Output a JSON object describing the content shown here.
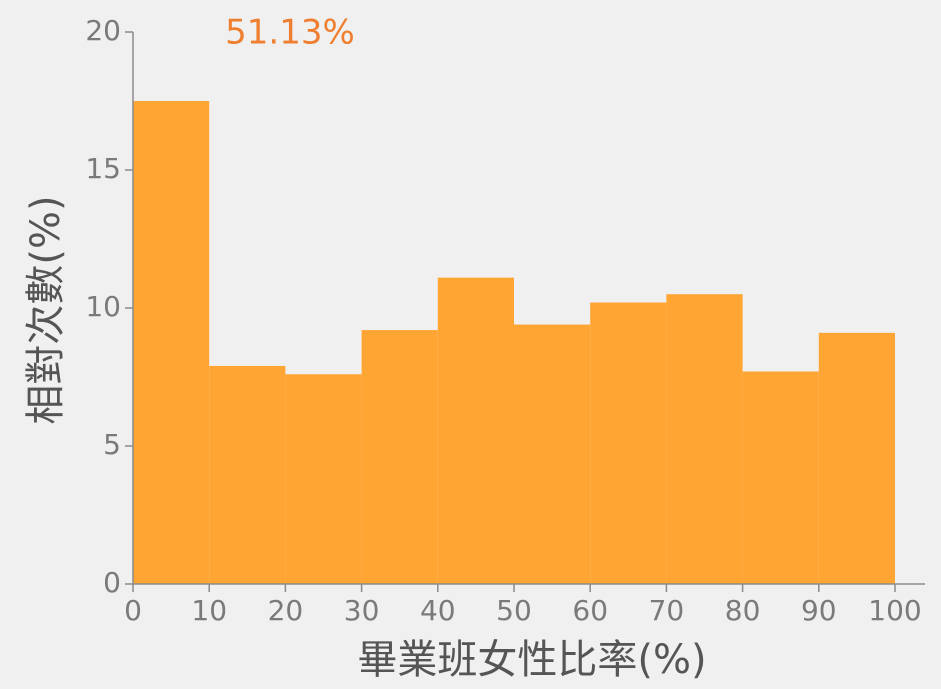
{
  "chart_data": {
    "type": "histogram",
    "annotation": "51.13%",
    "xlabel": "畢業班女性比率(%)",
    "ylabel": "相對次數(%)",
    "bins": [
      0,
      10,
      20,
      30,
      40,
      50,
      60,
      70,
      80,
      90,
      100
    ],
    "values": [
      17.5,
      7.9,
      7.6,
      9.2,
      11.1,
      9.4,
      10.2,
      10.5,
      7.7,
      9.1
    ],
    "color": "#ffa533",
    "xlim": [
      0,
      100
    ],
    "xticks": [
      0,
      10,
      20,
      30,
      40,
      50,
      60,
      70,
      80,
      90,
      100
    ],
    "ylim": [
      0,
      20
    ],
    "yticks": [
      0,
      5,
      10,
      15,
      20
    ],
    "grid": false
  }
}
